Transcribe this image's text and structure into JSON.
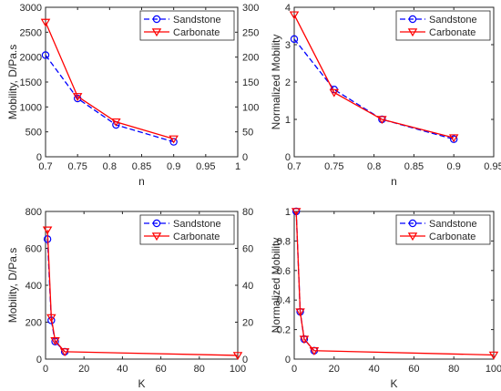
{
  "colors": {
    "sandstone": "#0000ff",
    "carbonate": "#ff0000",
    "axis": "#262626",
    "legend_border": "#262626"
  },
  "chart_data": [
    {
      "type": "line",
      "xlabel": "n",
      "ylabel": "Mobility, D/Pa.s",
      "xlim": [
        0.7,
        1.0
      ],
      "ylim": [
        0,
        3000
      ],
      "y2lim": [
        0,
        300
      ],
      "xticks": [
        "0.7",
        "0.75",
        "0.8",
        "0.85",
        "0.9",
        "0.95",
        "1"
      ],
      "xtick_values": [
        0.7,
        0.75,
        0.8,
        0.85,
        0.9,
        0.95,
        1.0
      ],
      "yticks": [
        "0",
        "500",
        "1000",
        "1500",
        "2000",
        "2500",
        "3000"
      ],
      "ytick_values": [
        0,
        500,
        1000,
        1500,
        2000,
        2500,
        3000
      ],
      "y2ticks": [
        "0",
        "50",
        "100",
        "150",
        "200",
        "250",
        "300"
      ],
      "y2tick_values": [
        0,
        50,
        100,
        150,
        200,
        250,
        300
      ],
      "x": [
        0.7,
        0.75,
        0.81,
        0.9
      ],
      "series": [
        {
          "name": "Sandstone",
          "values": [
            2040,
            1170,
            640,
            300
          ],
          "color": "#0000ff",
          "line": "dashed",
          "marker": "circle"
        },
        {
          "name": "Carbonate",
          "values": [
            2700,
            1210,
            700,
            360
          ],
          "color": "#ff0000",
          "line": "solid",
          "marker": "triangle-down"
        }
      ],
      "legend_position": "top-right",
      "grid": false
    },
    {
      "type": "line",
      "xlabel": "n",
      "ylabel": "Normalized Mobility",
      "xlim": [
        0.7,
        0.95
      ],
      "ylim": [
        0,
        4
      ],
      "xticks": [
        "0.7",
        "0.75",
        "0.8",
        "0.85",
        "0.9",
        "0.95"
      ],
      "xtick_values": [
        0.7,
        0.75,
        0.8,
        0.85,
        0.9,
        0.95
      ],
      "yticks": [
        "0",
        "1",
        "2",
        "3",
        "4"
      ],
      "ytick_values": [
        0,
        1,
        2,
        3,
        4
      ],
      "x": [
        0.7,
        0.75,
        0.81,
        0.9
      ],
      "series": [
        {
          "name": "Sandstone",
          "values": [
            3.15,
            1.8,
            1.0,
            0.47
          ],
          "color": "#0000ff",
          "line": "dashed",
          "marker": "circle"
        },
        {
          "name": "Carbonate",
          "values": [
            3.8,
            1.72,
            1.0,
            0.51
          ],
          "color": "#ff0000",
          "line": "solid",
          "marker": "triangle-down"
        }
      ],
      "legend_position": "top-right",
      "grid": false
    },
    {
      "type": "line",
      "xlabel": "K",
      "ylabel": "Mobility, D/Pa.s",
      "xlim": [
        0,
        100
      ],
      "ylim": [
        0,
        800
      ],
      "y2lim": [
        0,
        80
      ],
      "xticks": [
        "0",
        "20",
        "40",
        "60",
        "80",
        "100"
      ],
      "xtick_values": [
        0,
        20,
        40,
        60,
        80,
        100
      ],
      "yticks": [
        "0",
        "200",
        "400",
        "600",
        "800"
      ],
      "ytick_values": [
        0,
        200,
        400,
        600,
        800
      ],
      "y2ticks": [
        "0",
        "20",
        "40",
        "60",
        "80"
      ],
      "y2tick_values": [
        0,
        20,
        40,
        60,
        80
      ],
      "x": [
        1,
        2,
        5,
        10,
        100
      ],
      "series": [
        {
          "name": "Sandstone",
          "x": [
            1,
            3,
            5,
            10
          ],
          "values": [
            650,
            210,
            95,
            40
          ],
          "color": "#0000ff",
          "line": "dashed",
          "marker": "circle"
        },
        {
          "name": "Carbonate",
          "x": [
            1,
            3,
            5,
            10,
            100
          ],
          "values": [
            700,
            225,
            100,
            40,
            20
          ],
          "color": "#ff0000",
          "line": "solid",
          "marker": "triangle-down"
        }
      ],
      "legend_position": "top-right",
      "grid": false
    },
    {
      "type": "line",
      "xlabel": "K",
      "ylabel": "Normalized Mobility",
      "xlim": [
        0,
        100
      ],
      "ylim": [
        0,
        1
      ],
      "xticks": [
        "0",
        "20",
        "40",
        "60",
        "80",
        "100"
      ],
      "xtick_values": [
        0,
        20,
        40,
        60,
        80,
        100
      ],
      "yticks": [
        "0",
        "0.2",
        "0.4",
        "0.6",
        "0.8",
        "1"
      ],
      "ytick_values": [
        0,
        0.2,
        0.4,
        0.6,
        0.8,
        1.0
      ],
      "series": [
        {
          "name": "Sandstone",
          "x": [
            1,
            3,
            5,
            10
          ],
          "values": [
            1.0,
            0.32,
            0.135,
            0.057
          ],
          "color": "#0000ff",
          "line": "dashed",
          "marker": "circle"
        },
        {
          "name": "Carbonate",
          "x": [
            1,
            3,
            5,
            10,
            100
          ],
          "values": [
            1.0,
            0.32,
            0.135,
            0.057,
            0.028
          ],
          "color": "#ff0000",
          "line": "solid",
          "marker": "triangle-down"
        }
      ],
      "legend_position": "top-right",
      "grid": false
    }
  ]
}
